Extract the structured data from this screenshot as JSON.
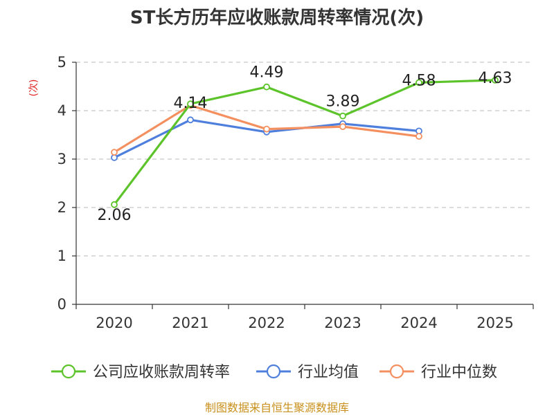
{
  "chart_data": {
    "type": "line",
    "title": "ST长方历年应收账款周转率情况(次)",
    "ylabel": "(次)",
    "xlabel": "",
    "categories": [
      "2020",
      "2021",
      "2022",
      "2023",
      "2024",
      "2025"
    ],
    "ylim": [
      0,
      5
    ],
    "yticks": [
      0,
      1,
      2,
      3,
      4,
      5
    ],
    "grid": true,
    "legend_position": "bottom",
    "series": [
      {
        "name": "公司应收账款周转率",
        "color": "#5cc42a",
        "values": [
          2.06,
          4.14,
          4.49,
          3.89,
          4.58,
          4.63
        ],
        "labels": [
          "2.06",
          "4.14",
          "4.49",
          "3.89",
          "4.58",
          "4.63"
        ]
      },
      {
        "name": "行业均值",
        "color": "#4f7fdc",
        "values": [
          3.03,
          3.81,
          3.56,
          3.73,
          3.58,
          null
        ]
      },
      {
        "name": "行业中位数",
        "color": "#f49060",
        "values": [
          3.14,
          4.11,
          3.62,
          3.67,
          3.47,
          null
        ]
      }
    ]
  },
  "source": "制图数据来自恒生聚源数据库"
}
